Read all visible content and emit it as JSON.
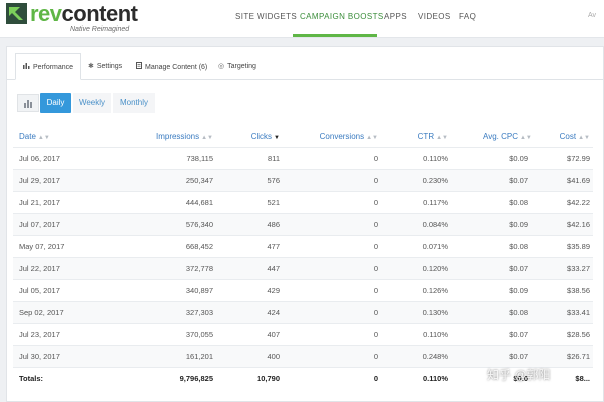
{
  "brand": {
    "name_part1": "rev",
    "name_part2": "content",
    "tagline": "Native Reimagined"
  },
  "nav": {
    "items": [
      {
        "label": "SITE WIDGETS",
        "active": false
      },
      {
        "label": "CAMPAIGN BOOSTS",
        "active": true
      },
      {
        "label": "APPS",
        "active": false
      },
      {
        "label": "VIDEOS",
        "active": false
      },
      {
        "label": "FAQ",
        "active": false
      }
    ],
    "cut_off_text": "Av"
  },
  "tabs": [
    {
      "label": "Performance",
      "icon": "bar-chart-icon",
      "active": true
    },
    {
      "label": "Settings",
      "icon": "gear-icon",
      "active": false
    },
    {
      "label": "Manage Content (6)",
      "icon": "document-icon",
      "active": false
    },
    {
      "label": "Targeting",
      "icon": "target-icon",
      "active": false
    }
  ],
  "period": {
    "options": [
      "Daily",
      "Weekly",
      "Monthly"
    ],
    "selected": "Daily"
  },
  "table": {
    "columns": [
      "Date",
      "Impressions",
      "Clicks",
      "Conversions",
      "CTR",
      "Avg. CPC",
      "Cost"
    ],
    "sorted_column": "Clicks",
    "rows": [
      [
        "Jul 06, 2017",
        "738,115",
        "811",
        "0",
        "0.110%",
        "$0.09",
        "$72.99"
      ],
      [
        "Jul 29, 2017",
        "250,347",
        "576",
        "0",
        "0.230%",
        "$0.07",
        "$41.69"
      ],
      [
        "Jul 21, 2017",
        "444,681",
        "521",
        "0",
        "0.117%",
        "$0.08",
        "$42.22"
      ],
      [
        "Jul 07, 2017",
        "576,340",
        "486",
        "0",
        "0.084%",
        "$0.09",
        "$42.16"
      ],
      [
        "May 07, 2017",
        "668,452",
        "477",
        "0",
        "0.071%",
        "$0.08",
        "$35.89"
      ],
      [
        "Jul 22, 2017",
        "372,778",
        "447",
        "0",
        "0.120%",
        "$0.07",
        "$33.27"
      ],
      [
        "Jul 05, 2017",
        "340,897",
        "429",
        "0",
        "0.126%",
        "$0.09",
        "$38.56"
      ],
      [
        "Sep 02, 2017",
        "327,303",
        "424",
        "0",
        "0.130%",
        "$0.08",
        "$33.41"
      ],
      [
        "Jul 23, 2017",
        "370,055",
        "407",
        "0",
        "0.110%",
        "$0.07",
        "$28.56"
      ],
      [
        "Jul 30, 2017",
        "161,201",
        "400",
        "0",
        "0.248%",
        "$0.07",
        "$26.71"
      ]
    ],
    "totals": [
      "Totals:",
      "9,796,825",
      "10,790",
      "0",
      "0.110%",
      "$0.0",
      "$8..."
    ]
  },
  "watermark": "知乎 @郭阳",
  "colors": {
    "brand_green": "#5fb646",
    "accent_blue": "#3498db",
    "link_blue": "#3a7bc0"
  }
}
